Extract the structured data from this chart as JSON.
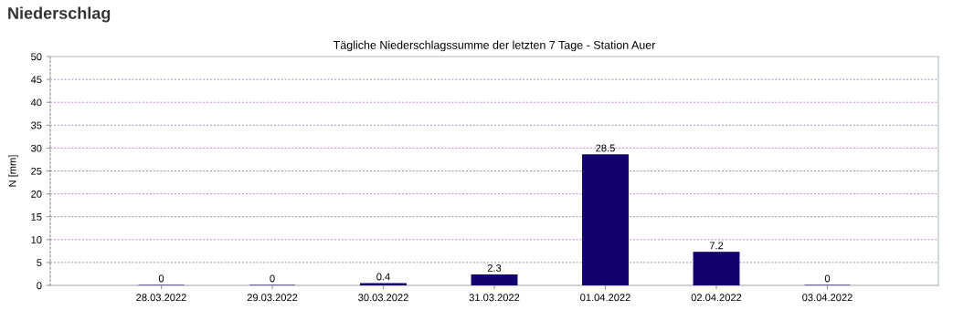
{
  "chart_data": {
    "type": "bar",
    "title": "Niederschlag",
    "subtitle": "Tägliche Niederschlagssumme der letzten 7 Tage - Station Auer",
    "ylabel": "N [mm]",
    "categories": [
      "28.03.2022",
      "29.03.2022",
      "30.03.2022",
      "31.03.2022",
      "01.04.2022",
      "02.04.2022",
      "03.04.2022"
    ],
    "values": [
      0,
      0,
      0.4,
      2.3,
      28.5,
      7.2,
      0
    ],
    "color": "#12006e",
    "ylim": [
      0,
      50
    ],
    "yticks": [
      0,
      5,
      10,
      15,
      20,
      25,
      30,
      35,
      40,
      45,
      50
    ],
    "grid": "y",
    "data_labels": true,
    "legend": false
  }
}
